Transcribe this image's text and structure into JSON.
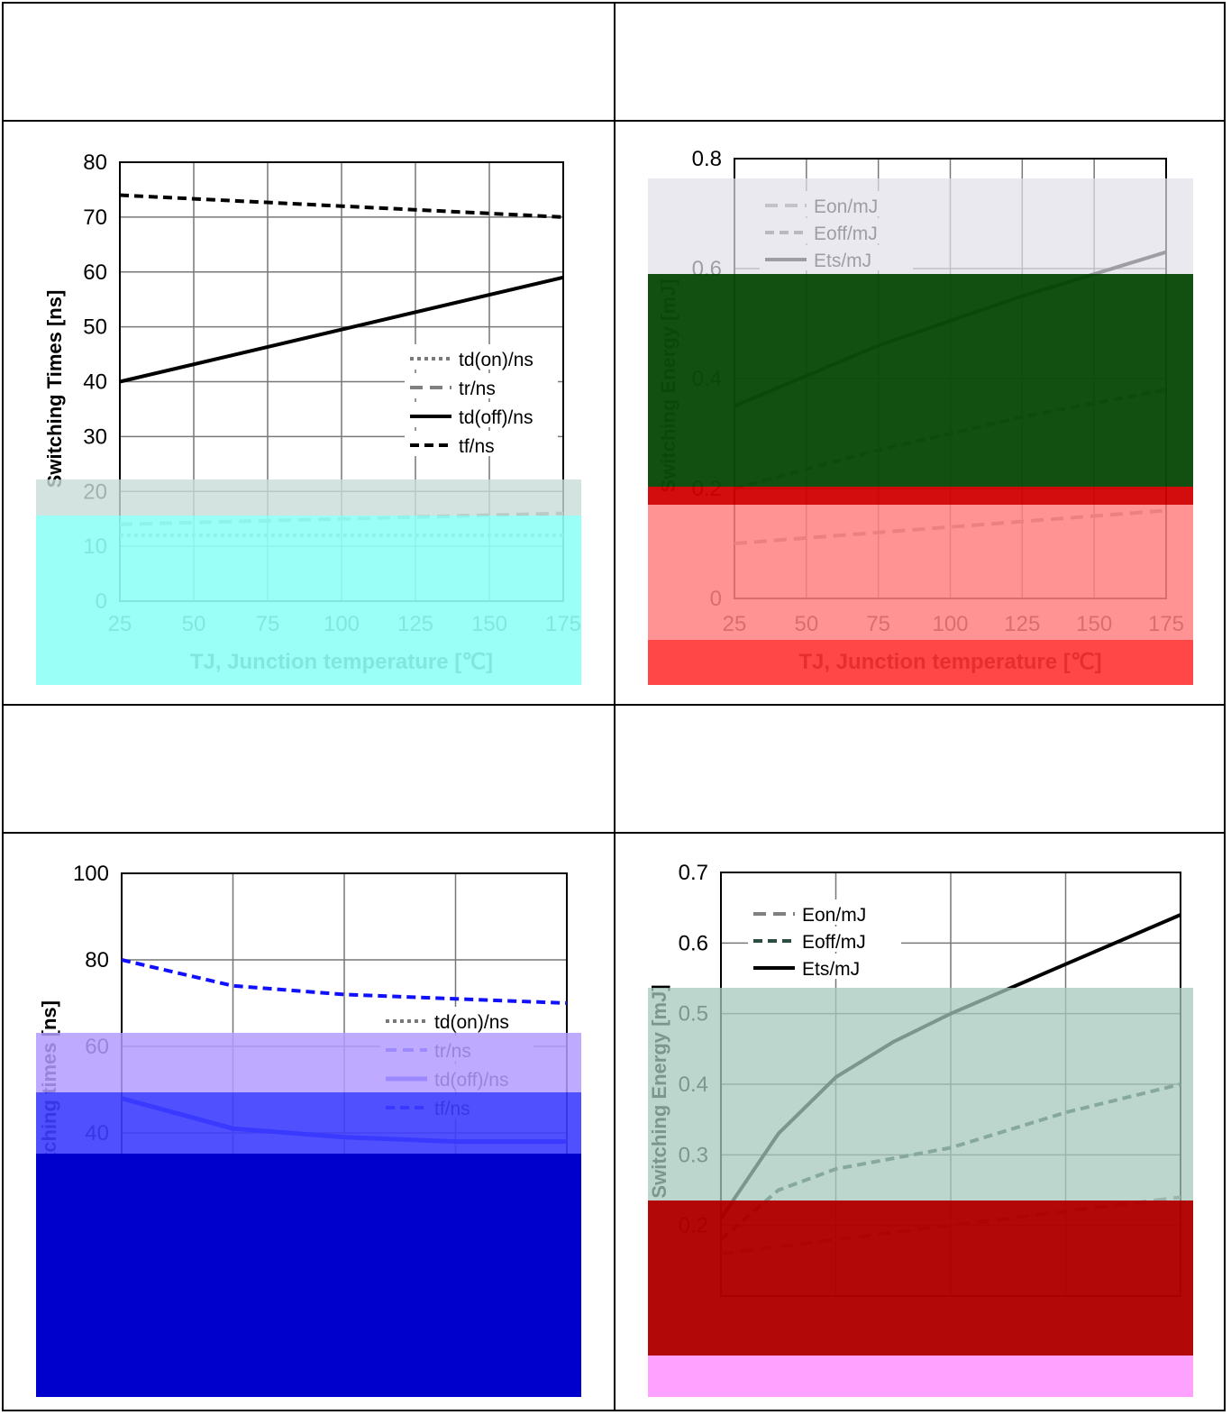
{
  "chart_data": [
    {
      "type": "line",
      "ylabel": "Switching Times [ns]",
      "xlabel": "TJ, Junction temperature [℃]",
      "xticks": [
        "25",
        "50",
        "75",
        "100",
        "125",
        "150",
        "175"
      ],
      "yticks": [
        "0",
        "10",
        "20",
        "30",
        "40",
        "50",
        "60",
        "70",
        "80"
      ],
      "xlim": [
        25,
        175
      ],
      "ylim": [
        0,
        80
      ],
      "grid": true,
      "legend": "center-right",
      "series": [
        {
          "name": "td(on)/ns",
          "style": "dotted",
          "x": [
            25,
            175
          ],
          "y": [
            12,
            12
          ]
        },
        {
          "name": "tr/ns",
          "style": "dashed-gray",
          "x": [
            25,
            175
          ],
          "y": [
            14,
            16
          ]
        },
        {
          "name": "td(off)/ns",
          "style": "solid",
          "x": [
            25,
            175
          ],
          "y": [
            40,
            59
          ]
        },
        {
          "name": "tf/ns",
          "style": "dashed-black",
          "x": [
            25,
            175
          ],
          "y": [
            74,
            70
          ]
        }
      ]
    },
    {
      "type": "line",
      "ylabel": "Switching Energy [mJ]",
      "xlabel": "TJ, Junction temperature [℃]",
      "xticks": [
        "25",
        "50",
        "75",
        "100",
        "125",
        "150",
        "175"
      ],
      "yticks": [
        "0",
        "0.2",
        "0.4",
        "0.6",
        "0.8"
      ],
      "xlim": [
        25,
        175
      ],
      "ylim": [
        0,
        0.8
      ],
      "grid": true,
      "legend": "top-left",
      "series": [
        {
          "name": "Eon/mJ",
          "style": "dashed-gray",
          "x": [
            25,
            75,
            125,
            175
          ],
          "y": [
            0.1,
            0.12,
            0.14,
            0.16
          ]
        },
        {
          "name": "Eoff/mJ",
          "style": "dashed-darkgray",
          "x": [
            25,
            75,
            125,
            175
          ],
          "y": [
            0.2,
            0.27,
            0.33,
            0.38
          ]
        },
        {
          "name": "Ets/mJ",
          "style": "solid",
          "x": [
            25,
            75,
            125,
            175
          ],
          "y": [
            0.35,
            0.46,
            0.55,
            0.63
          ]
        }
      ]
    },
    {
      "type": "line",
      "ylabel": "Switching times [ns]",
      "xlabel": "",
      "yticks": [
        "40",
        "60",
        "80",
        "100"
      ],
      "ylim": [
        0,
        100
      ],
      "grid": true,
      "legend": "center-right",
      "series": [
        {
          "name": "td(on)/ns",
          "style": "dotted",
          "x": [
            0,
            1,
            2,
            3,
            4
          ],
          "y": [
            15,
            15,
            15,
            15,
            15
          ]
        },
        {
          "name": "tr/ns",
          "style": "dashed-blue",
          "x": [
            0,
            1,
            2,
            3,
            4
          ],
          "y": [
            20,
            19,
            18,
            18,
            18
          ]
        },
        {
          "name": "td(off)/ns",
          "style": "solid-blue",
          "x": [
            0,
            1,
            2,
            3,
            4
          ],
          "y": [
            48,
            41,
            39,
            38,
            38
          ]
        },
        {
          "name": "tf/ns",
          "style": "dashed-blue-dark",
          "x": [
            0,
            1,
            2,
            3,
            4
          ],
          "y": [
            80,
            74,
            72,
            71,
            70
          ]
        }
      ]
    },
    {
      "type": "line",
      "ylabel": "Switching Energy [mJ]",
      "xlabel": "",
      "yticks": [
        "0.2",
        "0.3",
        "0.4",
        "0.5",
        "0.6",
        "0.7"
      ],
      "ylim": [
        0.1,
        0.7
      ],
      "grid": true,
      "legend": "top-left",
      "series": [
        {
          "name": "Eon/mJ",
          "style": "dashed-gray",
          "x": [
            0,
            1,
            2,
            3,
            4
          ],
          "y": [
            0.16,
            0.18,
            0.2,
            0.22,
            0.24
          ]
        },
        {
          "name": "Eoff/mJ",
          "style": "dashed-darkgreen",
          "x": [
            0,
            0.5,
            1,
            2,
            3,
            4
          ],
          "y": [
            0.18,
            0.25,
            0.28,
            0.31,
            0.36,
            0.4
          ]
        },
        {
          "name": "Ets/mJ",
          "style": "solid",
          "x": [
            0,
            0.5,
            1,
            1.5,
            2,
            3,
            4
          ],
          "y": [
            0.21,
            0.33,
            0.41,
            0.46,
            0.5,
            0.57,
            0.64
          ]
        }
      ]
    }
  ],
  "colors": {
    "panel1_overlay_top": "#c8ddd8",
    "panel1_overlay_bottom": "#8ffff6",
    "panel1_axis_bottom": "#00a651",
    "panel2_overlay_top": "#e3e0ea",
    "panel2_overlay_green": "#0a4a0a",
    "panel2_overlay_red_band": "#d10000",
    "panel2_overlay_pink": "#ff8080",
    "panel2_overlay_red": "#ff3333",
    "panel3_overlay_violet": "#b39bff",
    "panel3_overlay_blue": "#3d3dff",
    "panel3_overlay_darkblue": "#0000cc",
    "panel4_overlay_green": "#a6c8bc",
    "panel4_overlay_darkred": "#b00000",
    "panel4_overlay_pink": "#ff9cff"
  }
}
